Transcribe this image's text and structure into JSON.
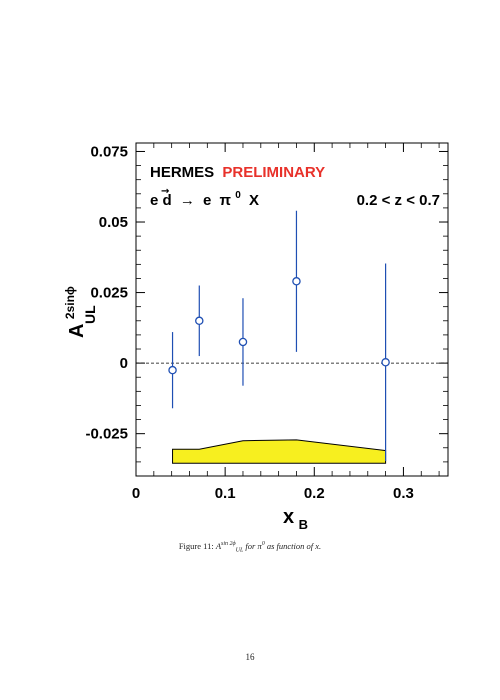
{
  "chart_data": {
    "type": "scatter",
    "title_prefix": "HERMES",
    "title_highlight": "PRELIMINARY",
    "reaction_label": {
      "lhs": "e d",
      "arrow": "→",
      "rhs_e": "e",
      "pi": "π",
      "pi_sup": "0",
      "rhs_x": "X"
    },
    "cut_label": "0.2 < z < 0.7",
    "ylabel": {
      "main": "A",
      "sub": "UL",
      "sup": "2sinϕ"
    },
    "xlabel": {
      "main": "x",
      "sub": "B"
    },
    "xlim": [
      0,
      0.35
    ],
    "ylim": [
      -0.04,
      0.078
    ],
    "x_ticks": [
      0,
      0.1,
      0.2,
      0.3
    ],
    "x_tick_labels": [
      "0",
      "0.1",
      "0.2",
      "0.3"
    ],
    "y_ticks": [
      -0.025,
      0,
      0.025,
      0.05,
      0.075
    ],
    "y_tick_labels": [
      "-0.025",
      "0",
      "0.025",
      "0.05",
      "0.075"
    ],
    "points": [
      {
        "x": 0.041,
        "y": -0.0025,
        "err": 0.0135
      },
      {
        "x": 0.071,
        "y": 0.015,
        "err": 0.0125
      },
      {
        "x": 0.12,
        "y": 0.0075,
        "err": 0.0155
      },
      {
        "x": 0.18,
        "y": 0.029,
        "err": 0.025
      },
      {
        "x": 0.28,
        "y": 0.0003,
        "err": 0.035
      }
    ],
    "systematic_band": {
      "x": [
        0.041,
        0.071,
        0.12,
        0.18,
        0.28
      ],
      "top": [
        -0.0305,
        -0.0305,
        -0.0275,
        -0.0272,
        -0.031
      ],
      "bottom": -0.0355
    },
    "zero_line": "dashed",
    "colors": {
      "points": "#1f4fb3",
      "band_fill": "#f7ef1f",
      "highlight": "#e8312a"
    }
  },
  "caption": {
    "prefix": "Figure 11:",
    "sym": "A",
    "sym_sup": "sin 2ϕ",
    "sym_sub": "UL",
    "middle": "for",
    "particle": "π",
    "particle_sup": "0",
    "suffix": "as function of x."
  },
  "page_number": "16"
}
